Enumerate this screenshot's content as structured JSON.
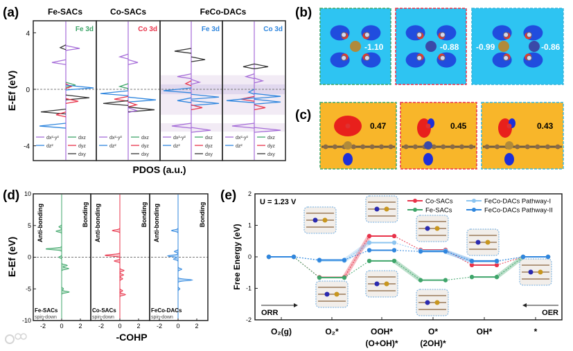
{
  "panel_labels": {
    "a": "(a)",
    "b": "(b)",
    "c": "(c)",
    "d": "(d)",
    "e": "(e)"
  },
  "watermark": "大数跨境",
  "colors": {
    "green": "#3fa56a",
    "red": "#e8334a",
    "blue": "#2f86de",
    "lightblue": "#8cc4f0",
    "purple": "#a56cd8",
    "black": "#333333"
  },
  "panel_b": {
    "values": [
      "-1.10",
      "-0.88",
      "-0.99",
      "-0.86"
    ]
  },
  "panel_c": {
    "values": [
      "0.47",
      "0.45",
      "0.43"
    ]
  },
  "chart_data": [
    {
      "type": "line",
      "id": "pdos",
      "xlabel": "PDOS (a.u.)",
      "ylabel": "E-Ef (eV)",
      "ylim": [
        -5,
        4.9
      ],
      "yticks": [
        "4",
        "0",
        "-4"
      ],
      "group_titles": [
        "Fe-SACs",
        "Co-SACs",
        "FeCo-DACs"
      ],
      "legend": [
        "dx²-y²",
        "dz²",
        "dxz",
        "dyz",
        "dxy"
      ],
      "subplots": [
        {
          "label": "Fe 3d",
          "label_color": "green",
          "peaks": [
            [
              "purple",
              2.9,
              0.5
            ],
            [
              "black",
              2.95,
              -0.2
            ],
            [
              "purple",
              1.9,
              -0.5
            ],
            [
              "green",
              0.3,
              0.35
            ],
            [
              "red",
              0.2,
              0.2
            ],
            [
              "blue",
              0.1,
              1.0
            ],
            [
              "black",
              -0.6,
              0.85
            ],
            [
              "red",
              -0.85,
              0.45
            ],
            [
              "black",
              -1.6,
              -0.9
            ],
            [
              "red",
              -1.8,
              -0.35
            ],
            [
              "blue",
              -2.6,
              -0.95
            ]
          ]
        },
        {
          "label": "Co 3d",
          "label_color": "red",
          "peaks": [
            [
              "purple",
              2.3,
              -0.3
            ],
            [
              "purple",
              1.9,
              0.35
            ],
            [
              "green",
              0.2,
              -0.3
            ],
            [
              "blue",
              -0.3,
              -1.0
            ],
            [
              "blue",
              -0.75,
              1.0
            ],
            [
              "red",
              -0.7,
              -0.5
            ],
            [
              "black",
              -1.0,
              -0.9
            ],
            [
              "red",
              -1.1,
              0.3
            ],
            [
              "black",
              -1.45,
              0.95
            ],
            [
              "purple",
              -1.5,
              0.3
            ]
          ]
        },
        {
          "label": "Fe 3d",
          "label_color": "blue",
          "peaks": [
            [
              "black",
              2.7,
              -0.6
            ],
            [
              "black",
              2.1,
              0.5
            ],
            [
              "purple",
              0.9,
              -0.5
            ],
            [
              "purple",
              0.5,
              0.3
            ],
            [
              "red",
              0.4,
              -0.2
            ],
            [
              "blue",
              -0.1,
              -1.0
            ],
            [
              "blue",
              -0.55,
              1.0
            ],
            [
              "blue",
              -0.8,
              -0.5
            ],
            [
              "blue",
              -1.0,
              1.0
            ],
            [
              "red",
              -1.3,
              0.4
            ],
            [
              "purple",
              -2.6,
              -0.7
            ],
            [
              "purple",
              -2.9,
              0.7
            ]
          ]
        },
        {
          "label": "Co 3d",
          "label_color": "blue",
          "peaks": [
            [
              "black",
              1.6,
              -0.4
            ],
            [
              "black",
              1.6,
              0.5
            ],
            [
              "purple",
              0.9,
              -0.3
            ],
            [
              "purple",
              0.6,
              0.3
            ],
            [
              "blue",
              -0.2,
              -0.2
            ],
            [
              "blue",
              -0.5,
              0.95
            ],
            [
              "red",
              -0.7,
              -0.5
            ],
            [
              "blue",
              -0.8,
              -1.0
            ],
            [
              "blue",
              -0.9,
              0.95
            ],
            [
              "red",
              -1.3,
              0.4
            ],
            [
              "purple",
              -2.6,
              -0.8
            ],
            [
              "purple",
              -2.9,
              0.95
            ]
          ]
        }
      ],
      "shaded_bands_eV": [
        [
          1.0,
          -1.8
        ],
        [
          0.35,
          -0.35
        ],
        [
          -2.4,
          -3.0
        ]
      ]
    },
    {
      "type": "area",
      "id": "cohp",
      "xlabel": "-COHP",
      "ylabel": "E-Ef (eV)",
      "ylim": [
        -10,
        10
      ],
      "xlim": [
        -3,
        3
      ],
      "yticks": [
        10,
        5,
        0,
        -5,
        -10
      ],
      "xticks": [
        -2,
        0,
        2
      ],
      "annotations": {
        "left": "Anti-bonding",
        "right": "Bonding",
        "spin": "spin-down"
      },
      "subplots": [
        {
          "name": "Fe-SACs",
          "color": "green",
          "peaks": [
            [
              4.1,
              -0.6
            ],
            [
              4.8,
              -0.3
            ],
            [
              1.3,
              -1.7
            ],
            [
              0,
              -0.3
            ],
            [
              -1.3,
              0.6
            ],
            [
              -1.8,
              0.75
            ],
            [
              -5.5,
              0.8
            ],
            [
              -5.0,
              0.2
            ]
          ]
        },
        {
          "name": "Co-SACs",
          "color": "red",
          "peaks": [
            [
              4.2,
              -0.8
            ],
            [
              0.3,
              -1.6
            ],
            [
              -0.6,
              -0.6
            ],
            [
              -2.1,
              0.45
            ],
            [
              -2.8,
              0.4
            ],
            [
              -3.4,
              0.3
            ],
            [
              -5.9,
              0.6
            ],
            [
              -5.3,
              0.3
            ]
          ]
        },
        {
          "name": "FeCo-DACs",
          "color": "blue",
          "peaks": [
            [
              4.2,
              -0.7
            ],
            [
              0.9,
              -0.4
            ],
            [
              0.2,
              -1.1
            ],
            [
              -0.3,
              -0.5
            ],
            [
              -1.9,
              0.4
            ],
            [
              -3.6,
              1.5
            ],
            [
              -5.0,
              0.2
            ]
          ]
        }
      ]
    },
    {
      "type": "line",
      "id": "free_energy",
      "ylabel": "Free Energy (eV)",
      "ylim": [
        -2,
        2
      ],
      "yticks": [
        2,
        1,
        0,
        -1,
        -2
      ],
      "annotation": "U = 1.23 V",
      "orr_label": "ORR",
      "oer_label": "OER",
      "categories": [
        [
          "O₂(g)",
          ""
        ],
        [
          "O₂*",
          ""
        ],
        [
          "OOH*",
          "(O+OH)*"
        ],
        [
          "O*",
          "(2OH)*"
        ],
        [
          "OH*",
          ""
        ],
        [
          "*",
          ""
        ]
      ],
      "series": [
        {
          "name": "Co-SACs",
          "color": "red",
          "values": [
            0,
            -0.65,
            0.66,
            0.22,
            -0.26,
            0
          ],
          "highlight": [
            1
          ]
        },
        {
          "name": "Fe-SACs",
          "color": "green",
          "values": [
            0,
            -0.66,
            -0.13,
            -0.74,
            -0.64,
            0
          ],
          "highlight": [
            2,
            4
          ]
        },
        {
          "name": "FeCo-DACs Pathway-I",
          "color": "lightblue",
          "values": [
            0,
            -0.12,
            0.45,
            0.2,
            -0.15,
            0
          ],
          "highlight": [
            1
          ]
        },
        {
          "name": "FeCo-DACs Pathway-II",
          "color": "blue",
          "values": [
            0,
            -0.1,
            0.21,
            0.17,
            -0.13,
            0
          ],
          "highlight": [
            3
          ]
        }
      ]
    }
  ]
}
